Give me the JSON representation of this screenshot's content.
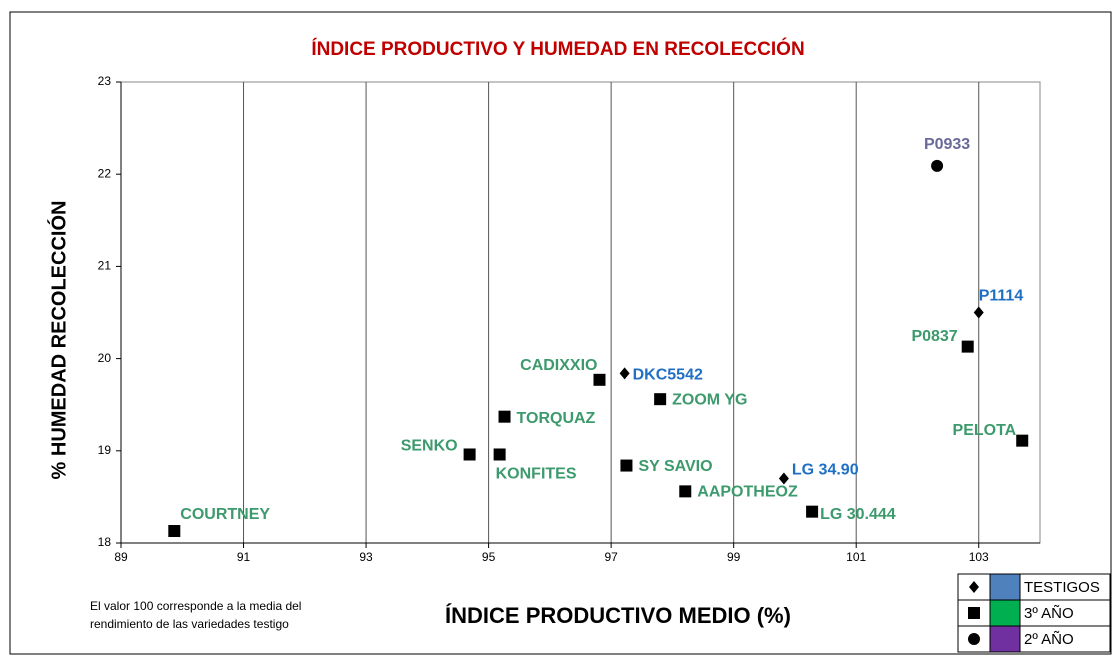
{
  "chart_data": {
    "type": "scatter",
    "title": "ÍNDICE PRODUCTIVO  Y HUMEDAD EN RECOLECCIÓN",
    "x_label": "ÍNDICE PRODUCTIVO MEDIO (%)",
    "y_label": "% HUMEDAD RECOLECCIÓN",
    "note": [
      "El valor 100 corresponde a la media del",
      "rendimiento de las variedades testigo"
    ],
    "xlim": [
      89,
      104
    ],
    "xticks": [
      89,
      91,
      93,
      95,
      97,
      99,
      101,
      103
    ],
    "ylim": [
      18,
      23
    ],
    "yticks": [
      18,
      19,
      20,
      21,
      22,
      23
    ],
    "grid": true,
    "legend": "lower right",
    "series": [
      {
        "name": "TESTIGOS",
        "color": "#4f81bd",
        "label_color": "#1f6fc4",
        "marker": "diamond",
        "labels": [
          "DKC5542",
          "LG 34.90",
          "P1114"
        ],
        "x": [
          97.22,
          99.82,
          103.0
        ],
        "y": [
          19.84,
          18.7,
          20.5
        ]
      },
      {
        "name": "3º AÑO",
        "color": "#00b050",
        "label_color": "#3c9a6c",
        "marker": "square",
        "labels": [
          "COURTNEY",
          "SENKO",
          "KONFITES",
          "TORQUAZ",
          "CADIXXIO",
          "ZOOM YG",
          "SY SAVIO",
          "AAPOTHEOZ",
          "LG 30.444",
          "P0837",
          "PELOTA"
        ],
        "x": [
          89.87,
          94.69,
          95.18,
          95.26,
          96.81,
          97.8,
          97.25,
          98.21,
          100.28,
          102.82,
          103.71
        ],
        "y": [
          18.13,
          18.96,
          18.96,
          19.37,
          19.77,
          19.56,
          18.84,
          18.56,
          18.34,
          20.13,
          19.11
        ]
      },
      {
        "name": "2º AÑO",
        "color": "#7030a0",
        "label_color": "#6a6a9a",
        "marker": "circle",
        "labels": [
          "P0933"
        ],
        "x": [
          102.32
        ],
        "y": [
          22.09
        ]
      }
    ]
  }
}
